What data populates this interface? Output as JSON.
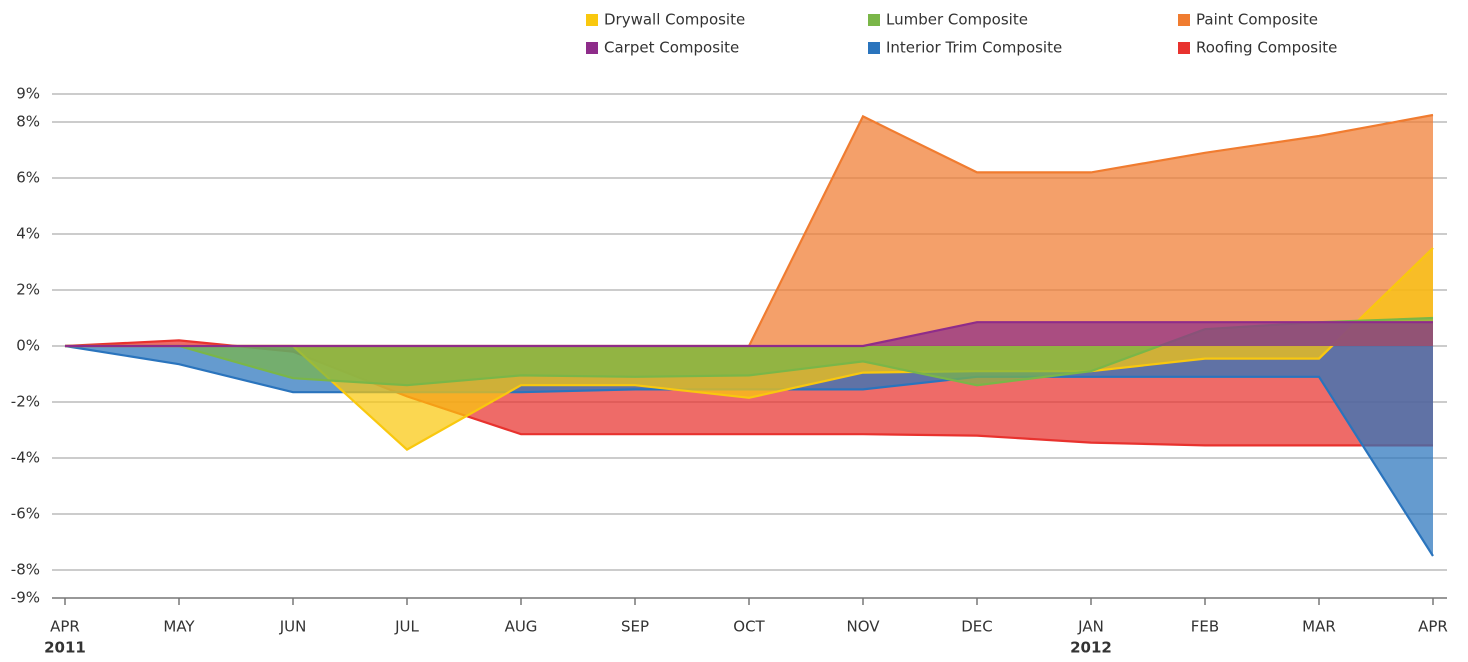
{
  "chart_data": {
    "type": "area",
    "categories": [
      "APR",
      "MAY",
      "JUN",
      "JUL",
      "AUG",
      "SEP",
      "OCT",
      "NOV",
      "DEC",
      "JAN",
      "FEB",
      "MAR",
      "APR"
    ],
    "year_labels": [
      "2011",
      null,
      null,
      null,
      null,
      null,
      null,
      null,
      null,
      "2012",
      null,
      null,
      null
    ],
    "series": [
      {
        "name": "Paint Composite",
        "color": "#f07c30",
        "values": [
          0,
          0,
          0,
          0,
          0,
          0,
          0,
          8.2,
          6.2,
          6.2,
          6.9,
          7.5,
          8.25
        ]
      },
      {
        "name": "Roofing Composite",
        "color": "#e8322e",
        "values": [
          0,
          0.2,
          -0.2,
          -1.8,
          -3.15,
          -3.15,
          -3.15,
          -3.15,
          -3.2,
          -3.45,
          -3.55,
          -3.55,
          -3.55
        ]
      },
      {
        "name": "Interior Trim Composite",
        "color": "#2a74bd",
        "values": [
          0,
          -0.65,
          -1.65,
          -1.65,
          -1.65,
          -1.55,
          -1.55,
          -1.55,
          -1.1,
          -1.1,
          -1.1,
          -1.1,
          -7.5
        ]
      },
      {
        "name": "Drywall Composite",
        "color": "#f9c80e",
        "values": [
          0,
          0,
          0,
          -3.7,
          -1.4,
          -1.4,
          -1.85,
          -0.95,
          -0.9,
          -0.9,
          -0.45,
          -0.45,
          3.5
        ]
      },
      {
        "name": "Lumber Composite",
        "color": "#7ab648",
        "values": [
          0,
          0,
          -1.15,
          -1.4,
          -1.05,
          -1.1,
          -1.05,
          -0.55,
          -1.4,
          -0.9,
          0.6,
          0.85,
          1.0
        ]
      },
      {
        "name": "Carpet Composite",
        "color": "#8e2c8a",
        "values": [
          0,
          0,
          0,
          0,
          0,
          0,
          0,
          0,
          0.85,
          0.85,
          0.85,
          0.85,
          0.85
        ]
      }
    ],
    "legend_order": [
      3,
      4,
      0,
      5,
      2,
      1
    ],
    "ylim": [
      -9,
      9
    ],
    "yticks": [
      {
        "value": 9,
        "label": "9%"
      },
      {
        "value": 8,
        "label": "8%"
      },
      {
        "value": 6,
        "label": "6%"
      },
      {
        "value": 4,
        "label": "4%"
      },
      {
        "value": 2,
        "label": "2%"
      },
      {
        "value": 0,
        "label": "0%"
      },
      {
        "value": -2,
        "label": "-2%"
      },
      {
        "value": -4,
        "label": "-4%"
      },
      {
        "value": -6,
        "label": "-6%"
      },
      {
        "value": -8,
        "label": "-8%"
      },
      {
        "value": -9,
        "label": "-9%"
      }
    ],
    "grid": true
  }
}
